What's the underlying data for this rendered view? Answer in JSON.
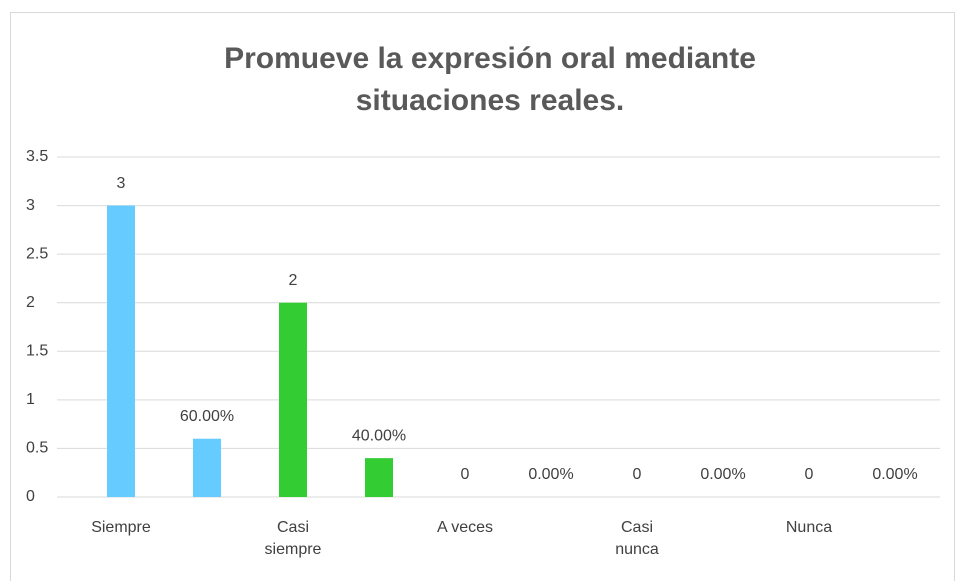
{
  "chart_data": {
    "type": "bar",
    "title": "Promueve la expresión oral mediante situaciones reales.",
    "categories": [
      "Siempre",
      null,
      "Casi siempre",
      null,
      "A veces",
      null,
      "Casi nunca",
      null,
      "Nunca",
      null
    ],
    "values": [
      3,
      0.6,
      2,
      0.4,
      0,
      0,
      0,
      0,
      0,
      0
    ],
    "value_labels": [
      "3",
      "60.00%",
      "2",
      "40.00%",
      "0",
      "0.00%",
      "0",
      "0.00%",
      "0",
      "0.00%"
    ],
    "colors": [
      "#66ccff",
      "#66ccff",
      "#33cc33",
      "#33cc33",
      "#66ccff",
      "#66ccff",
      "#33cc33",
      "#33cc33",
      "#66ccff",
      "#66ccff"
    ],
    "ylim": [
      0,
      3.5
    ],
    "yticks": [
      0,
      0.5,
      1,
      1.5,
      2,
      2.5,
      3,
      3.5
    ],
    "grid": true
  }
}
